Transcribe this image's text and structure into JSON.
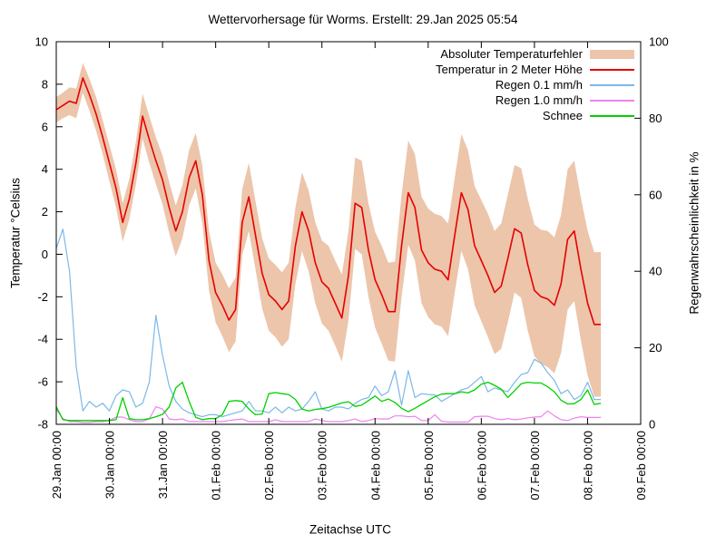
{
  "chart_data": {
    "type": "line",
    "title": "Wettervorhersage für Worms. Erstellt: 29.Jan 2025 05:54",
    "xlabel": "Zeitachse UTC",
    "ylabel_left": "Temperatur °Celsius",
    "ylabel_right": "Regenwahrscheinlichkeit in %",
    "y_left_axis": {
      "min": -8,
      "max": 10,
      "tick_step": 2,
      "tick_labels": [
        "10",
        "8",
        "6",
        "4",
        "2",
        "0",
        "-2",
        "-4",
        "-6",
        "-8"
      ]
    },
    "y_right_axis": {
      "min": 0,
      "max": 100,
      "tick_step": 20,
      "tick_labels": [
        "100",
        "80",
        "60",
        "40",
        "20",
        "0"
      ]
    },
    "x_axis_days_total": 11,
    "x_tick_labels": [
      "29.Jan 00:00",
      "30.Jan 00:00",
      "31.Jan 00:00",
      "01.Feb 00:00",
      "02.Feb 00:00",
      "03.Feb 00:00",
      "04.Feb 00:00",
      "05.Feb 00:00",
      "06.Feb 00:00",
      "07.Feb 00:00",
      "08.Feb 00:00",
      "09.Feb 00:00"
    ],
    "legend_position": "top-right-inside",
    "grid": "off",
    "x_hours": [
      0,
      3,
      6,
      9,
      12,
      15,
      18,
      21,
      24,
      27,
      30,
      33,
      36,
      39,
      42,
      45,
      48,
      51,
      54,
      57,
      60,
      63,
      66,
      69,
      72,
      75,
      78,
      81,
      84,
      87,
      90,
      93,
      96,
      99,
      102,
      105,
      108,
      111,
      114,
      117,
      120,
      123,
      126,
      129,
      132,
      135,
      138,
      141,
      144,
      147,
      150,
      153,
      156,
      159,
      162,
      165,
      168,
      171,
      174,
      177,
      180,
      183,
      186,
      189,
      192,
      195,
      198,
      201,
      204,
      207,
      210,
      213,
      216,
      219,
      222,
      225,
      228,
      231,
      234,
      237,
      240,
      243,
      246
    ],
    "series": [
      {
        "name": "Absoluter Temperaturfehler",
        "type": "band",
        "axis": "left",
        "color": "#ecc5ab",
        "half_width": [
          0.6,
          0.6,
          0.65,
          0.7,
          0.7,
          0.75,
          0.8,
          0.8,
          0.85,
          0.9,
          0.9,
          0.95,
          1.0,
          1.05,
          1.1,
          1.1,
          1.15,
          1.2,
          1.2,
          1.25,
          1.3,
          1.3,
          1.35,
          1.4,
          1.4,
          1.45,
          1.5,
          1.5,
          1.55,
          1.6,
          1.6,
          1.65,
          1.7,
          1.7,
          1.75,
          1.8,
          1.8,
          1.85,
          1.9,
          1.9,
          1.95,
          2.0,
          2.0,
          2.05,
          2.1,
          2.15,
          2.2,
          2.2,
          2.25,
          2.3,
          2.3,
          2.35,
          2.4,
          2.45,
          2.5,
          2.5,
          2.55,
          2.6,
          2.6,
          2.65,
          2.7,
          2.75,
          2.8,
          2.8,
          2.85,
          2.9,
          2.9,
          2.95,
          3.0,
          3.0,
          3.05,
          3.1,
          3.1,
          3.15,
          3.2,
          3.2,
          3.25,
          3.3,
          3.3,
          3.35,
          3.4,
          3.4,
          3.4
        ]
      },
      {
        "name": "Temperatur in 2 Meter Höhe",
        "type": "line",
        "axis": "left",
        "color": "#e60000",
        "values": [
          6.8,
          7.0,
          7.2,
          7.1,
          8.3,
          7.5,
          6.6,
          5.5,
          4.3,
          3.1,
          1.5,
          2.6,
          4.3,
          6.5,
          5.4,
          4.4,
          3.5,
          2.2,
          1.1,
          2.0,
          3.6,
          4.4,
          2.8,
          -0.3,
          -1.8,
          -2.4,
          -3.1,
          -2.6,
          1.5,
          2.7,
          0.9,
          -0.9,
          -1.9,
          -2.2,
          -2.6,
          -2.2,
          0.4,
          2.0,
          1.1,
          -0.4,
          -1.3,
          -1.6,
          -2.3,
          -3.0,
          -1.0,
          2.4,
          2.2,
          0.2,
          -1.2,
          -1.9,
          -2.7,
          -2.7,
          0.4,
          2.9,
          2.2,
          0.2,
          -0.4,
          -0.7,
          -0.8,
          -1.2,
          0.9,
          2.9,
          2.1,
          0.4,
          -0.3,
          -1.0,
          -1.8,
          -1.5,
          -0.2,
          1.2,
          1.0,
          -0.5,
          -1.7,
          -2.0,
          -2.1,
          -2.4,
          -1.4,
          0.7,
          1.1,
          -0.7,
          -2.3,
          -3.3,
          -3.3
        ]
      },
      {
        "name": "Regen 0.1 mm/h",
        "type": "line",
        "axis": "right",
        "color": "#7cb8e8",
        "values": [
          46,
          51,
          40,
          15,
          3.5,
          6,
          4.5,
          5.5,
          3.5,
          7.5,
          9,
          8.5,
          4.5,
          5.5,
          11,
          28.5,
          18,
          10,
          6,
          4,
          3,
          2.5,
          2,
          2.5,
          2.5,
          2,
          2.5,
          3,
          3.5,
          6,
          3.5,
          3.5,
          3,
          4.5,
          3,
          4.5,
          3.5,
          4,
          6,
          8.5,
          4,
          3.5,
          4.5,
          4.5,
          4,
          5.5,
          6.5,
          7,
          10,
          7.5,
          8.5,
          14,
          5,
          14,
          7,
          8,
          7.8,
          7.7,
          6,
          7,
          8,
          9,
          9.5,
          11,
          12.5,
          8.5,
          9.5,
          9,
          8.5,
          11,
          13,
          13.5,
          17,
          16,
          13.5,
          11.5,
          8,
          9,
          6.5,
          7.5,
          11,
          6.5,
          6.5
        ]
      },
      {
        "name": "Regen 1.0 mm/h",
        "type": "line",
        "axis": "right",
        "color": "#ee82ee",
        "values": [
          3.9,
          1.5,
          0.7,
          0.7,
          0.5,
          0.5,
          0.7,
          0.7,
          1.0,
          1.9,
          1.9,
          1.2,
          0.7,
          0.7,
          1.4,
          4.6,
          4.0,
          1.4,
          1.2,
          1.4,
          0.7,
          0.7,
          0.7,
          0.7,
          0.7,
          0.7,
          1.0,
          1.2,
          1.4,
          0.7,
          0.7,
          0.7,
          0.7,
          1.2,
          0.7,
          0.7,
          0.7,
          0.7,
          0.7,
          1.4,
          1.0,
          0.7,
          0.7,
          0.7,
          1.0,
          1.4,
          0.7,
          1.0,
          1.5,
          1.4,
          1.4,
          2.2,
          2.2,
          2.0,
          2.1,
          1.0,
          1.0,
          2.5,
          0.8,
          0.6,
          0.6,
          0.6,
          0.6,
          2.0,
          2.1,
          2.1,
          1.5,
          1.2,
          1.5,
          1.2,
          1.4,
          1.7,
          1.9,
          2.0,
          3.5,
          2.2,
          1.2,
          1.0,
          1.6,
          2.0,
          1.8,
          1.8,
          1.8
        ]
      },
      {
        "name": "Schnee",
        "type": "line",
        "axis": "right",
        "color": "#00d000",
        "values": [
          4.6,
          1.2,
          1.0,
          1.0,
          1.0,
          1.0,
          1.0,
          1.0,
          1.0,
          1.2,
          7.0,
          1.5,
          1.2,
          1.2,
          1.5,
          2.0,
          2.6,
          4.5,
          9.5,
          11.0,
          6.0,
          1.8,
          1.2,
          1.5,
          1.5,
          2.5,
          6.0,
          6.2,
          6.0,
          4.0,
          2.5,
          2.7,
          8.0,
          8.3,
          8.0,
          7.8,
          6.5,
          4.0,
          3.5,
          3.9,
          4.1,
          4.4,
          5.0,
          5.6,
          5.9,
          4.7,
          5.0,
          6.2,
          7.4,
          6.0,
          6.6,
          5.7,
          4.2,
          3.3,
          4.2,
          5.2,
          6.2,
          7.2,
          7.9,
          8.0,
          8.0,
          8.5,
          8.2,
          9.0,
          10.5,
          11.0,
          10.2,
          9.2,
          7.0,
          8.8,
          10.6,
          11.0,
          10.8,
          10.8,
          9.8,
          8.5,
          6.3,
          5.3,
          5.4,
          6.5,
          9.0,
          5.2,
          5.5
        ]
      }
    ]
  }
}
